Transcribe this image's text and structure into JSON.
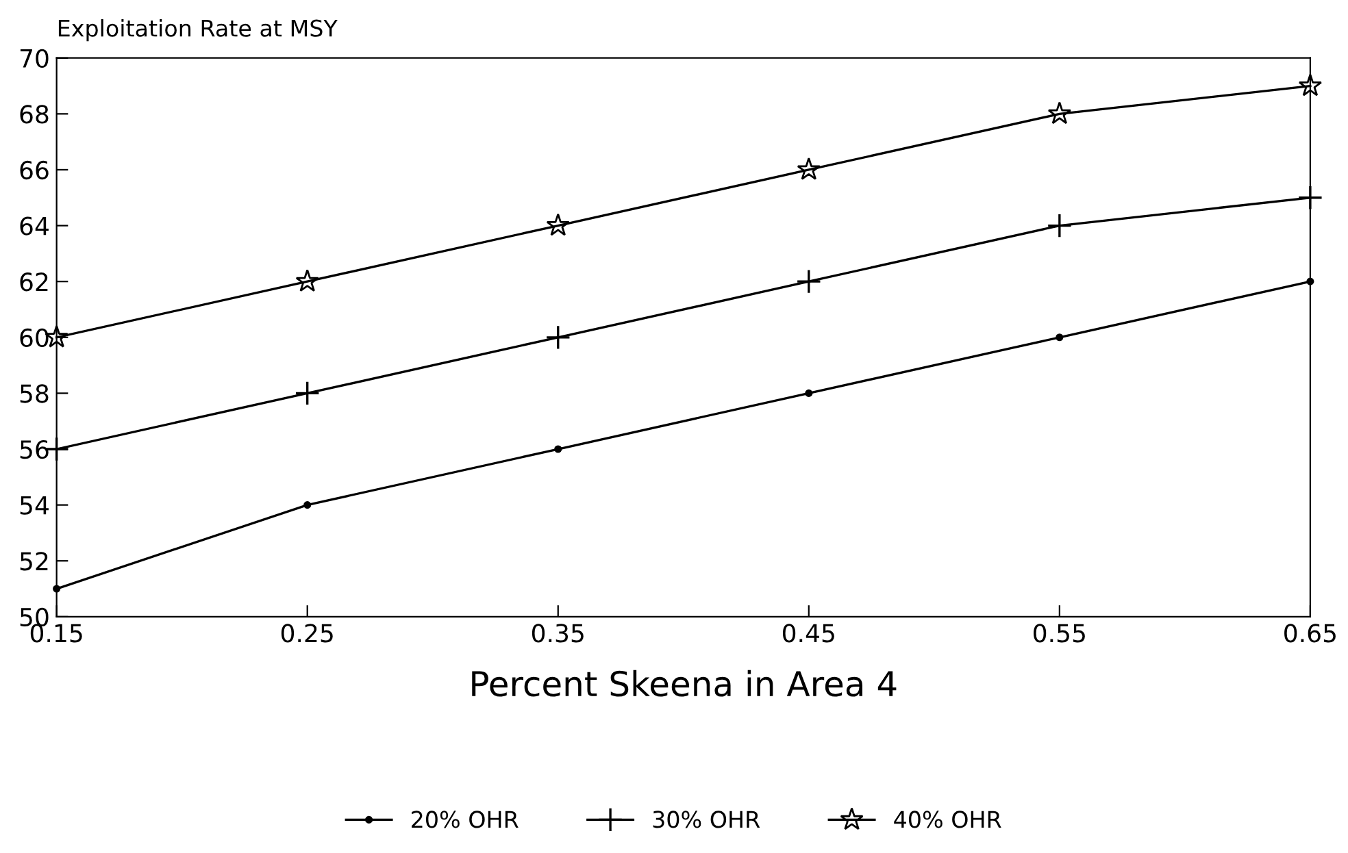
{
  "chart_data": {
    "type": "line",
    "ylabel": "Exploitation Rate at MSY",
    "xlabel": "Percent Skeena in Area 4",
    "x": [
      0.15,
      0.25,
      0.35,
      0.45,
      0.55,
      0.65
    ],
    "series": [
      {
        "name": "20% OHR",
        "color": "#000000",
        "marker": "circle",
        "values": [
          51,
          54,
          56,
          58,
          60,
          62
        ]
      },
      {
        "name": "30% OHR",
        "color": "#000000",
        "marker": "cross",
        "values": [
          56,
          58,
          60,
          62,
          64,
          65
        ]
      },
      {
        "name": "40% OHR",
        "color": "#000000",
        "marker": "star",
        "values": [
          60,
          62,
          64,
          66,
          68,
          69
        ]
      }
    ],
    "xlim": [
      0.15,
      0.65
    ],
    "xticks": [
      0.15,
      0.25,
      0.35,
      0.45,
      0.55,
      0.65
    ],
    "ylim": [
      50,
      70
    ],
    "yticks": [
      50,
      52,
      54,
      56,
      58,
      60,
      62,
      64,
      66,
      68,
      70
    ],
    "grid": false,
    "legend": "bottom",
    "line_style": "solid"
  }
}
